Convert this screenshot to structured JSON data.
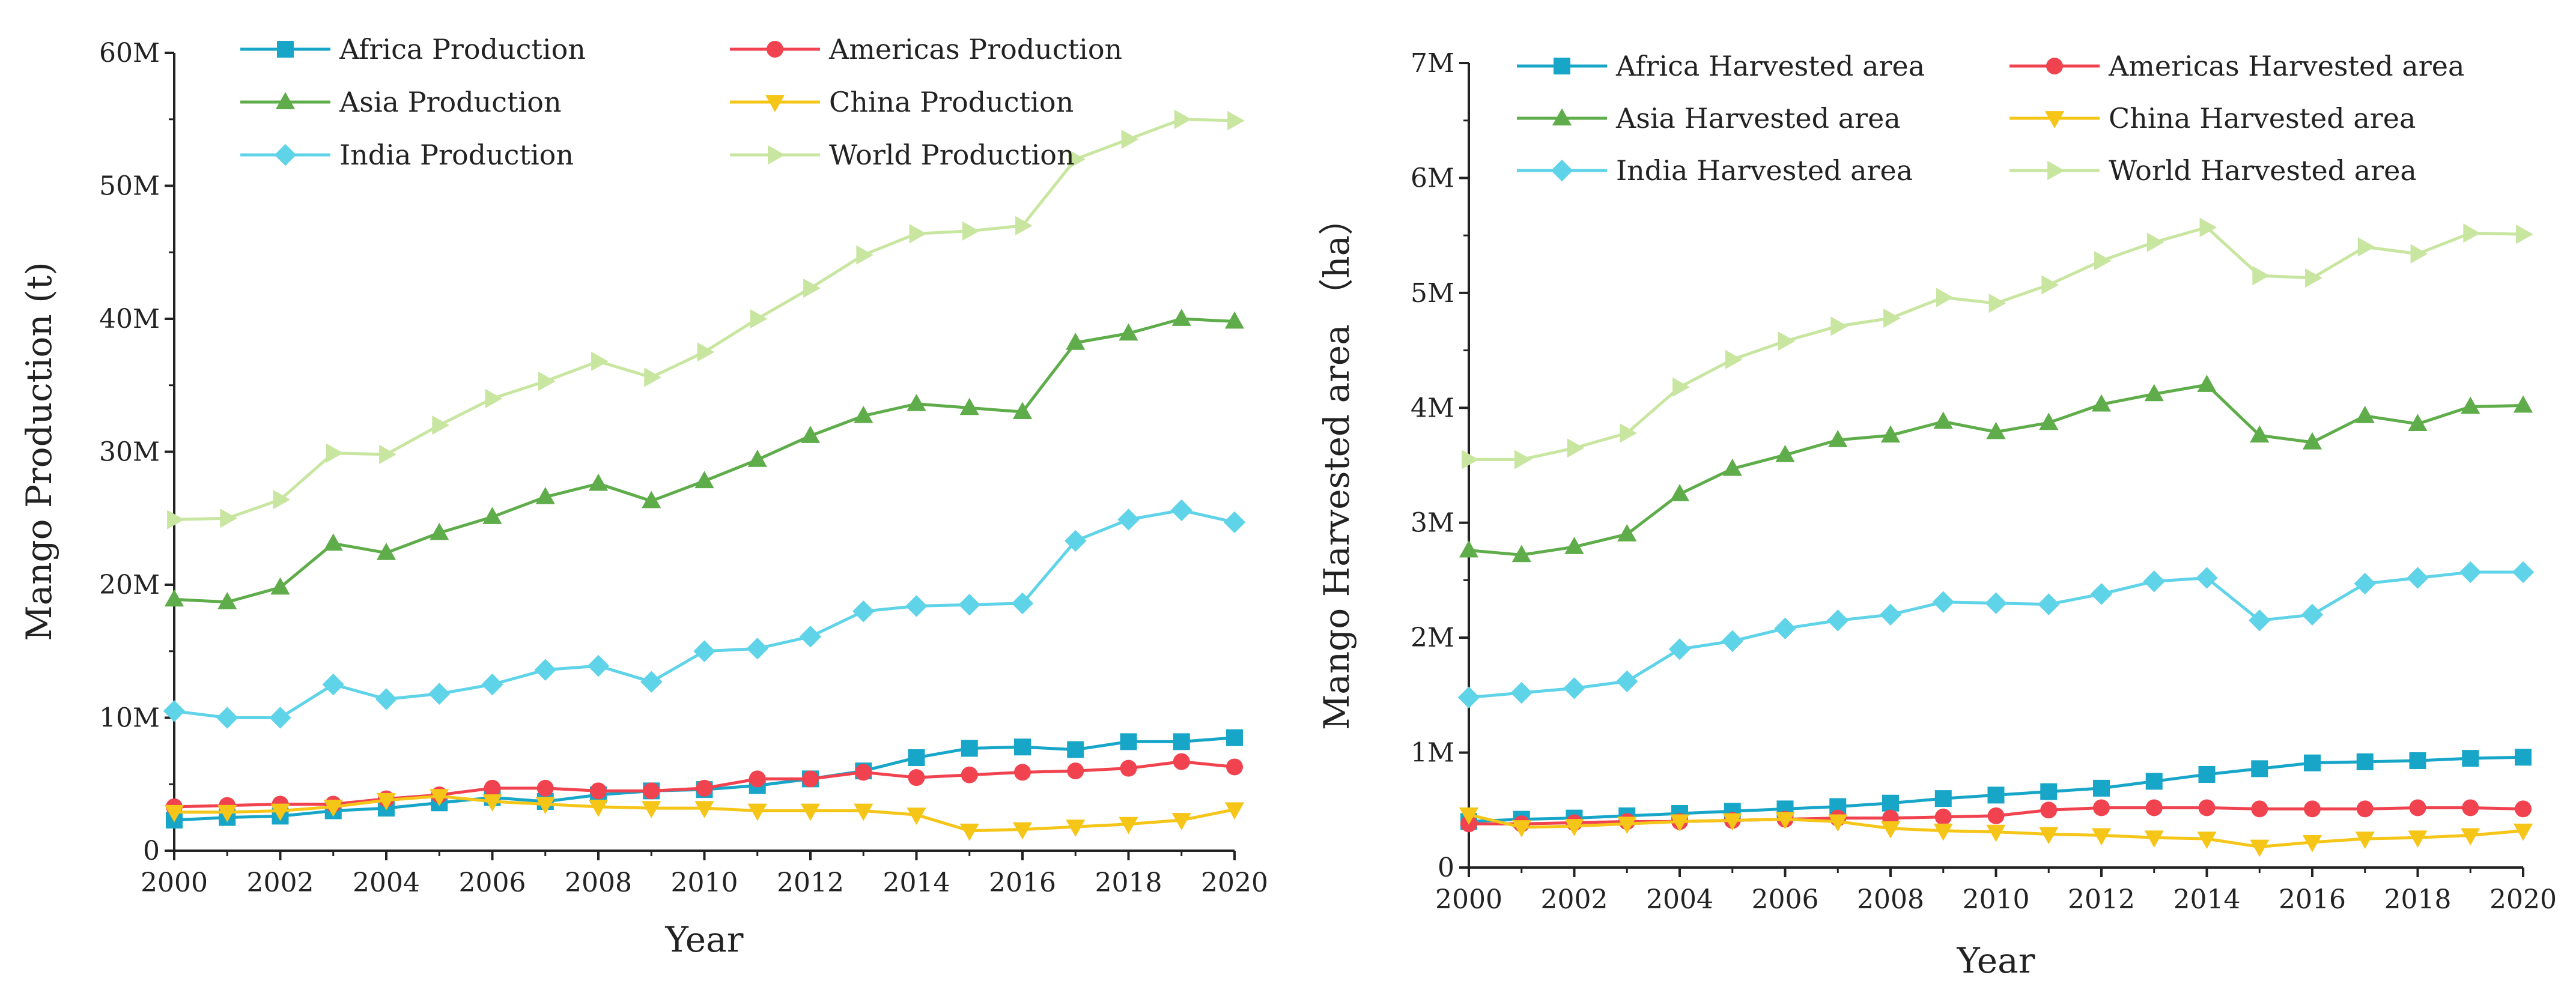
{
  "chart_data": [
    {
      "type": "line",
      "title": "",
      "xlabel": "Year",
      "ylabel": "Mango Production (t)",
      "xlim": [
        2000,
        2020
      ],
      "ylim": [
        0,
        60000000
      ],
      "xticks": [
        "2000",
        "2002",
        "2004",
        "2006",
        "2008",
        "2010",
        "2012",
        "2014",
        "2016",
        "2018",
        "2020"
      ],
      "yticks": [
        "0",
        "10M",
        "20M",
        "30M",
        "40M",
        "50M",
        "60M"
      ],
      "legend_position": "top-left",
      "x": [
        2000,
        2001,
        2002,
        2003,
        2004,
        2005,
        2006,
        2007,
        2008,
        2009,
        2010,
        2011,
        2012,
        2013,
        2014,
        2015,
        2016,
        2017,
        2018,
        2019,
        2020
      ],
      "series": [
        {
          "name": "Africa Production",
          "color": "#17a6c8",
          "marker": "square",
          "values": [
            2300000,
            2500000,
            2600000,
            3000000,
            3200000,
            3600000,
            4000000,
            3700000,
            4200000,
            4500000,
            4600000,
            4900000,
            5400000,
            6000000,
            7000000,
            7700000,
            7800000,
            7600000,
            8200000,
            8200000,
            8500000
          ]
        },
        {
          "name": "Americas Production",
          "color": "#f0434f",
          "marker": "circle",
          "values": [
            3300000,
            3400000,
            3500000,
            3500000,
            3900000,
            4200000,
            4700000,
            4700000,
            4500000,
            4500000,
            4700000,
            5400000,
            5400000,
            5900000,
            5500000,
            5700000,
            5900000,
            6000000,
            6200000,
            6700000,
            6300000
          ]
        },
        {
          "name": "Asia Production",
          "color": "#5fac4a",
          "marker": "triangle-up",
          "values": [
            18900000,
            18700000,
            19800000,
            23100000,
            22400000,
            23900000,
            25100000,
            26600000,
            27600000,
            26300000,
            27800000,
            29400000,
            31200000,
            32700000,
            33600000,
            33300000,
            33000000,
            38200000,
            38900000,
            40000000,
            39800000
          ]
        },
        {
          "name": "China Production",
          "color": "#f5c518",
          "marker": "triangle-down",
          "values": [
            2900000,
            2900000,
            3000000,
            3300000,
            3800000,
            4100000,
            3700000,
            3500000,
            3300000,
            3200000,
            3200000,
            3000000,
            3000000,
            3000000,
            2700000,
            1500000,
            1600000,
            1800000,
            2000000,
            2300000,
            3100000
          ]
        },
        {
          "name": "India Production",
          "color": "#5fd3e8",
          "marker": "diamond",
          "values": [
            10500000,
            10000000,
            10000000,
            12500000,
            11400000,
            11800000,
            12500000,
            13600000,
            13900000,
            12700000,
            15000000,
            15200000,
            16100000,
            18000000,
            18400000,
            18500000,
            18600000,
            23300000,
            24900000,
            25600000,
            24700000
          ]
        },
        {
          "name": "World Production",
          "color": "#c8e6a0",
          "marker": "triangle-right",
          "values": [
            24900000,
            25000000,
            26400000,
            29900000,
            29800000,
            32000000,
            34000000,
            35300000,
            36800000,
            35600000,
            37500000,
            40000000,
            42300000,
            44800000,
            46400000,
            46600000,
            47000000,
            52000000,
            53500000,
            55000000,
            54900000
          ]
        }
      ]
    },
    {
      "type": "line",
      "title": "",
      "xlabel": "Year",
      "ylabel": "Mango Harvested area （ha）",
      "xlim": [
        2000,
        2020
      ],
      "ylim": [
        0,
        7000000
      ],
      "xticks": [
        "2000",
        "2002",
        "2004",
        "2006",
        "2008",
        "2010",
        "2012",
        "2014",
        "2016",
        "2018",
        "2020"
      ],
      "yticks": [
        "0",
        "1M",
        "2M",
        "3M",
        "4M",
        "5M",
        "6M",
        "7M"
      ],
      "legend_position": "top-left",
      "x": [
        2000,
        2001,
        2002,
        2003,
        2004,
        2005,
        2006,
        2007,
        2008,
        2009,
        2010,
        2011,
        2012,
        2013,
        2014,
        2015,
        2016,
        2017,
        2018,
        2019,
        2020
      ],
      "series": [
        {
          "name": "Africa Harvested area",
          "color": "#17a6c8",
          "marker": "square",
          "values": [
            400000,
            420000,
            430000,
            450000,
            470000,
            490000,
            510000,
            530000,
            560000,
            600000,
            630000,
            660000,
            690000,
            750000,
            810000,
            860000,
            910000,
            920000,
            930000,
            950000,
            960000
          ]
        },
        {
          "name": "Americas Harvested area",
          "color": "#f0434f",
          "marker": "circle",
          "values": [
            380000,
            380000,
            390000,
            400000,
            400000,
            410000,
            420000,
            430000,
            430000,
            440000,
            450000,
            500000,
            520000,
            520000,
            520000,
            510000,
            510000,
            510000,
            520000,
            520000,
            510000
          ]
        },
        {
          "name": "Asia Harvested area",
          "color": "#5fac4a",
          "marker": "triangle-up",
          "values": [
            2760000,
            2720000,
            2790000,
            2900000,
            3250000,
            3470000,
            3590000,
            3720000,
            3760000,
            3880000,
            3790000,
            3870000,
            4030000,
            4120000,
            4200000,
            3760000,
            3700000,
            3930000,
            3860000,
            4010000,
            4020000
          ]
        },
        {
          "name": "China Harvested area",
          "color": "#f5c518",
          "marker": "triangle-down",
          "values": [
            460000,
            350000,
            360000,
            380000,
            400000,
            410000,
            420000,
            400000,
            340000,
            320000,
            310000,
            290000,
            280000,
            260000,
            250000,
            180000,
            220000,
            250000,
            260000,
            280000,
            320000
          ]
        },
        {
          "name": "India Harvested area",
          "color": "#5fd3e8",
          "marker": "diamond",
          "values": [
            1480000,
            1520000,
            1560000,
            1620000,
            1900000,
            1970000,
            2080000,
            2150000,
            2200000,
            2310000,
            2300000,
            2290000,
            2380000,
            2490000,
            2520000,
            2150000,
            2200000,
            2470000,
            2520000,
            2570000,
            2570000
          ]
        },
        {
          "name": "World Harvested area",
          "color": "#c8e6a0",
          "marker": "triangle-right",
          "values": [
            3550000,
            3550000,
            3650000,
            3780000,
            4180000,
            4420000,
            4580000,
            4710000,
            4780000,
            4960000,
            4910000,
            5070000,
            5280000,
            5440000,
            5570000,
            5150000,
            5130000,
            5400000,
            5340000,
            5520000,
            5510000
          ]
        }
      ]
    }
  ]
}
